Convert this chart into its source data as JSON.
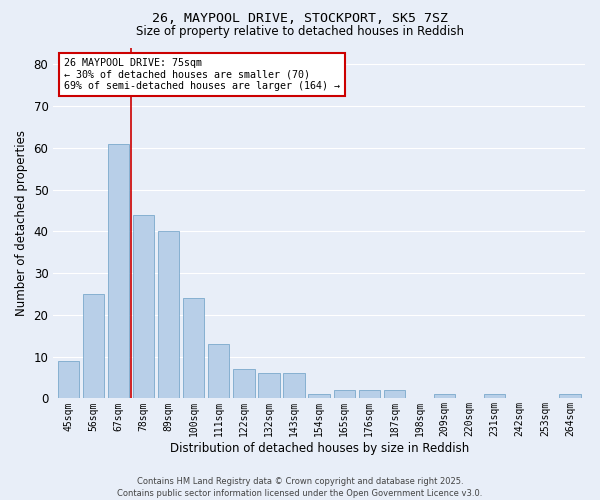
{
  "title_line1": "26, MAYPOOL DRIVE, STOCKPORT, SK5 7SZ",
  "title_line2": "Size of property relative to detached houses in Reddish",
  "xlabel": "Distribution of detached houses by size in Reddish",
  "ylabel": "Number of detached properties",
  "categories": [
    "45sqm",
    "56sqm",
    "67sqm",
    "78sqm",
    "89sqm",
    "100sqm",
    "111sqm",
    "122sqm",
    "132sqm",
    "143sqm",
    "154sqm",
    "165sqm",
    "176sqm",
    "187sqm",
    "198sqm",
    "209sqm",
    "220sqm",
    "231sqm",
    "242sqm",
    "253sqm",
    "264sqm"
  ],
  "values": [
    9,
    25,
    61,
    44,
    40,
    24,
    13,
    7,
    6,
    6,
    1,
    2,
    2,
    2,
    0,
    1,
    0,
    1,
    0,
    0,
    1
  ],
  "bar_color": "#b8cfe8",
  "bar_edge_color": "#6a9ec5",
  "background_color": "#e8eef8",
  "grid_color": "#ffffff",
  "vline_index": 2.5,
  "vline_color": "#cc0000",
  "annotation_text": "26 MAYPOOL DRIVE: 75sqm\n← 30% of detached houses are smaller (70)\n69% of semi-detached houses are larger (164) →",
  "annotation_box_color": "#cc0000",
  "footer_line1": "Contains HM Land Registry data © Crown copyright and database right 2025.",
  "footer_line2": "Contains public sector information licensed under the Open Government Licence v3.0.",
  "ylim": [
    0,
    84
  ],
  "yticks": [
    0,
    10,
    20,
    30,
    40,
    50,
    60,
    70,
    80
  ]
}
